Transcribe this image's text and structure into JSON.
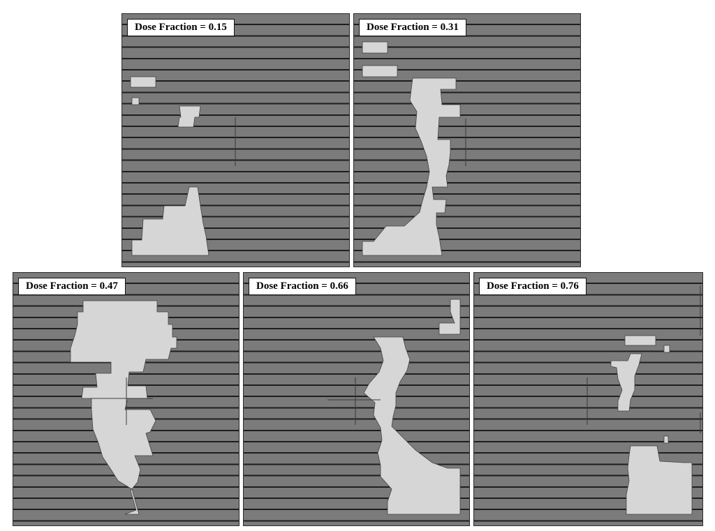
{
  "panels": [
    {
      "id": "p1",
      "label": "Dose Fraction = 0.15"
    },
    {
      "id": "p2",
      "label": "Dose Fraction = 0.31"
    },
    {
      "id": "p3",
      "label": "Dose Fraction = 0.47"
    },
    {
      "id": "p4",
      "label": "Dose Fraction = 0.66"
    },
    {
      "id": "p5",
      "label": "Dose Fraction = 0.76"
    }
  ],
  "colors": {
    "leaf": "#7b7b7b",
    "leaf_edge": "#1e1e1e",
    "aperture": "#d6d6d6"
  }
}
